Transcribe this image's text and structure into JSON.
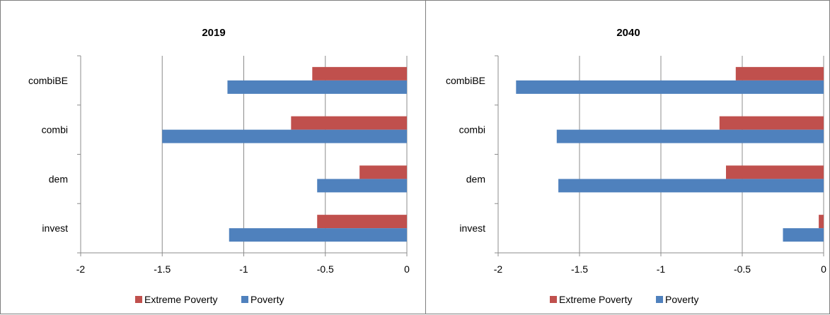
{
  "chart_data": [
    {
      "type": "bar",
      "orientation": "horizontal",
      "title": "2019",
      "categories": [
        "combiBE",
        "combi",
        "dem",
        "invest"
      ],
      "series": [
        {
          "name": "Extreme Poverty",
          "color": "#c0504d",
          "values": [
            -0.58,
            -0.71,
            -0.29,
            -0.55
          ]
        },
        {
          "name": "Poverty",
          "color": "#4f81bd",
          "values": [
            -1.1,
            -1.5,
            -0.55,
            -1.09
          ]
        }
      ],
      "xlim": [
        -2,
        0
      ],
      "xticks": [
        "-2",
        "-1.5",
        "-1",
        "-0.5",
        "0"
      ],
      "grid": true,
      "legend": "bottom"
    },
    {
      "type": "bar",
      "orientation": "horizontal",
      "title": "2040",
      "categories": [
        "combiBE",
        "combi",
        "dem",
        "invest"
      ],
      "series": [
        {
          "name": "Extreme Poverty",
          "color": "#c0504d",
          "values": [
            -0.54,
            -0.64,
            -0.6,
            -0.03
          ]
        },
        {
          "name": "Poverty",
          "color": "#4f81bd",
          "values": [
            -1.89,
            -1.64,
            -1.63,
            -0.25
          ]
        }
      ],
      "xlim": [
        -2,
        0
      ],
      "xticks": [
        "-2",
        "-1.5",
        "-1",
        "-0.5",
        "0"
      ],
      "grid": true,
      "legend": "bottom"
    }
  ]
}
